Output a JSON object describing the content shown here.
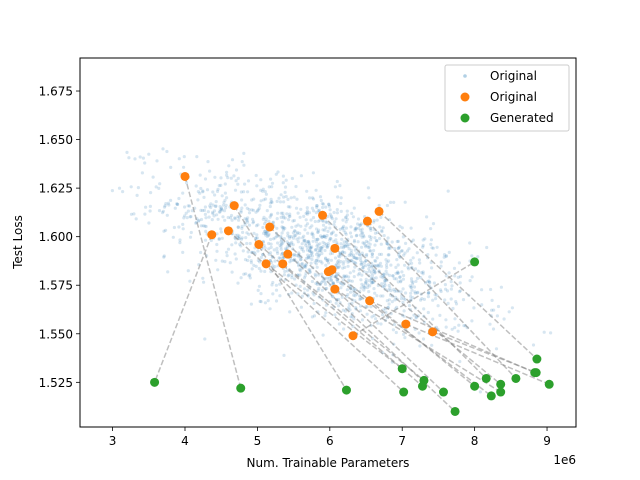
{
  "chart_data": {
    "type": "scatter",
    "title": "",
    "xlabel": "Num. Trainable Parameters",
    "ylabel": "Test Loss",
    "x_offset_label": "1e6",
    "xlim": [
      2.55,
      9.4
    ],
    "ylim": [
      1.502,
      1.692
    ],
    "x_ticks": [
      3,
      4,
      5,
      6,
      7,
      8,
      9
    ],
    "y_ticks": [
      1.525,
      1.55,
      1.575,
      1.6,
      1.625,
      1.65,
      1.675
    ],
    "x_tick_labels": [
      "3",
      "4",
      "5",
      "6",
      "7",
      "8",
      "9"
    ],
    "y_tick_labels": [
      "1.525",
      "1.550",
      "1.575",
      "1.600",
      "1.625",
      "1.650",
      "1.675"
    ],
    "grid": false,
    "legend_position": "top-right",
    "legend": [
      {
        "label": "Original",
        "style": "small-faint",
        "color": "#1f77b4"
      },
      {
        "label": "Original",
        "style": "marker",
        "color": "#ff7f0e"
      },
      {
        "label": "Generated",
        "style": "marker",
        "color": "#2ca02c"
      }
    ],
    "background_cloud": {
      "name": "Original",
      "color": "#1f77b4",
      "approx_count": 1500,
      "center": [
        5.9,
        1.592
      ],
      "x_range": [
        2.85,
        9.05
      ],
      "y_range": [
        1.52,
        1.685
      ]
    },
    "series": [
      {
        "name": "Original",
        "color": "#ff7f0e",
        "points": [
          [
            4.0,
            1.631
          ],
          [
            4.37,
            1.601
          ],
          [
            4.6,
            1.603
          ],
          [
            4.68,
            1.616
          ],
          [
            5.02,
            1.596
          ],
          [
            5.12,
            1.586
          ],
          [
            5.17,
            1.605
          ],
          [
            5.35,
            1.586
          ],
          [
            5.42,
            1.591
          ],
          [
            5.9,
            1.611
          ],
          [
            5.98,
            1.582
          ],
          [
            6.03,
            1.583
          ],
          [
            6.07,
            1.594
          ],
          [
            6.07,
            1.573
          ],
          [
            6.32,
            1.549
          ],
          [
            6.52,
            1.608
          ],
          [
            6.55,
            1.567
          ],
          [
            6.68,
            1.613
          ],
          [
            7.05,
            1.555
          ],
          [
            7.42,
            1.551
          ]
        ]
      },
      {
        "name": "Generated",
        "color": "#2ca02c",
        "points": [
          [
            3.58,
            1.525
          ],
          [
            4.77,
            1.522
          ],
          [
            6.23,
            1.521
          ],
          [
            7.0,
            1.532
          ],
          [
            7.02,
            1.52
          ],
          [
            7.28,
            1.523
          ],
          [
            7.3,
            1.526
          ],
          [
            7.57,
            1.52
          ],
          [
            7.73,
            1.51
          ],
          [
            8.0,
            1.523
          ],
          [
            8.0,
            1.587
          ],
          [
            8.16,
            1.527
          ],
          [
            8.23,
            1.518
          ],
          [
            8.36,
            1.524
          ],
          [
            8.36,
            1.52
          ],
          [
            8.57,
            1.527
          ],
          [
            8.83,
            1.53
          ],
          [
            8.86,
            1.537
          ],
          [
            9.03,
            1.524
          ],
          [
            8.85,
            1.53
          ]
        ]
      }
    ],
    "links": [
      {
        "from": [
          4.0,
          1.631
        ],
        "to": [
          4.77,
          1.522
        ]
      },
      {
        "from": [
          4.37,
          1.601
        ],
        "to": [
          3.58,
          1.525
        ]
      },
      {
        "from": [
          4.68,
          1.616
        ],
        "to": [
          6.23,
          1.521
        ]
      },
      {
        "from": [
          4.6,
          1.603
        ],
        "to": [
          7.02,
          1.52
        ]
      },
      {
        "from": [
          5.02,
          1.596
        ],
        "to": [
          7.28,
          1.523
        ]
      },
      {
        "from": [
          5.12,
          1.586
        ],
        "to": [
          7.0,
          1.532
        ]
      },
      {
        "from": [
          5.17,
          1.605
        ],
        "to": [
          7.57,
          1.52
        ]
      },
      {
        "from": [
          5.35,
          1.586
        ],
        "to": [
          7.3,
          1.526
        ]
      },
      {
        "from": [
          5.42,
          1.591
        ],
        "to": [
          7.73,
          1.51
        ]
      },
      {
        "from": [
          5.9,
          1.611
        ],
        "to": [
          8.16,
          1.527
        ]
      },
      {
        "from": [
          5.98,
          1.582
        ],
        "to": [
          8.23,
          1.518
        ]
      },
      {
        "from": [
          6.03,
          1.583
        ],
        "to": [
          8.0,
          1.523
        ]
      },
      {
        "from": [
          6.07,
          1.594
        ],
        "to": [
          8.36,
          1.524
        ]
      },
      {
        "from": [
          6.07,
          1.573
        ],
        "to": [
          8.36,
          1.52
        ]
      },
      {
        "from": [
          6.32,
          1.549
        ],
        "to": [
          8.0,
          1.587
        ]
      },
      {
        "from": [
          6.52,
          1.608
        ],
        "to": [
          8.57,
          1.527
        ]
      },
      {
        "from": [
          6.55,
          1.567
        ],
        "to": [
          8.83,
          1.53
        ]
      },
      {
        "from": [
          6.68,
          1.613
        ],
        "to": [
          8.86,
          1.537
        ]
      },
      {
        "from": [
          7.05,
          1.555
        ],
        "to": [
          9.03,
          1.524
        ]
      },
      {
        "from": [
          7.42,
          1.551
        ],
        "to": [
          8.85,
          1.53
        ]
      }
    ]
  }
}
